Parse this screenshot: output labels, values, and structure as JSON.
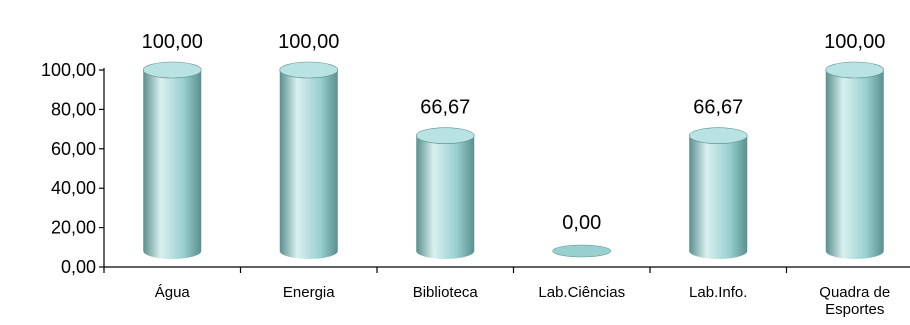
{
  "chart_data": {
    "type": "bar",
    "categories": [
      "Água",
      "Energia",
      "Biblioteca",
      "Lab.Ciências",
      "Lab.Info.",
      [
        "Quadra de",
        "Esportes"
      ]
    ],
    "values": [
      100.0,
      100.0,
      66.67,
      0.0,
      66.67,
      100.0
    ],
    "data_labels": [
      "100,00",
      "100,00",
      "66,67",
      "0,00",
      "66,67",
      "100,00"
    ],
    "y_tick_labels": [
      "0,00",
      "20,00",
      "40,00",
      "60,00",
      "80,00",
      "100,00"
    ],
    "ylim": [
      0,
      100
    ],
    "grid": false,
    "legend": "none",
    "bar_style": "3d-cylinder",
    "colors": {
      "bar_fill": "#97d0cf",
      "bar_highlight": "#d9f0ef",
      "bar_shadow": "#5a8f8e",
      "bar_top": "#b9e3e2",
      "axis": "#000000"
    },
    "title": "",
    "xlabel": "",
    "ylabel": ""
  }
}
